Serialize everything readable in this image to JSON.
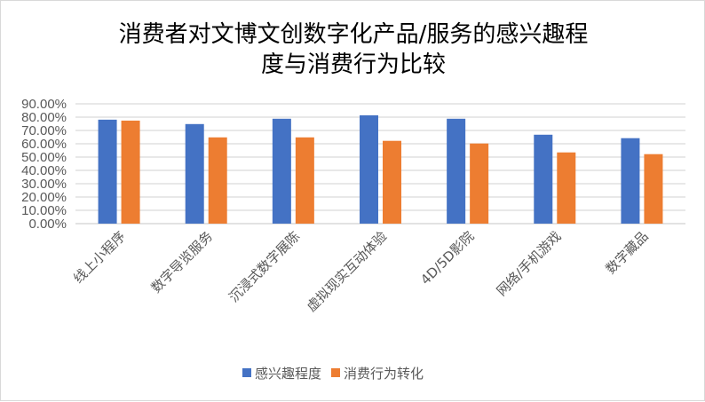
{
  "chart_data": {
    "type": "bar",
    "title": [
      "消费者对文博文创数字化产品/服务的感兴趣程",
      "度与消费行为比较"
    ],
    "categories": [
      "线上小程序",
      "数字导览服务",
      "沉浸式数字展陈",
      "虚拟现实互动体验",
      "4D/5D影院",
      "网络/手机游戏",
      "数字藏品"
    ],
    "series": [
      {
        "name": "感兴趣程度",
        "color": "#4472C4",
        "values": [
          78.1,
          74.8,
          78.8,
          81.4,
          78.8,
          66.8,
          64.2
        ]
      },
      {
        "name": "消费行为转化",
        "color": "#ED7D31",
        "values": [
          77.4,
          64.8,
          64.8,
          62.2,
          60.2,
          53.5,
          52.2
        ]
      }
    ],
    "yticks": [
      "0.00%",
      "10.00%",
      "20.00%",
      "30.00%",
      "40.00%",
      "50.00%",
      "60.00%",
      "70.00%",
      "80.00%",
      "90.00%"
    ],
    "ylim": [
      0,
      90
    ],
    "yunit": "%",
    "grid": true,
    "legend": "bottom"
  }
}
